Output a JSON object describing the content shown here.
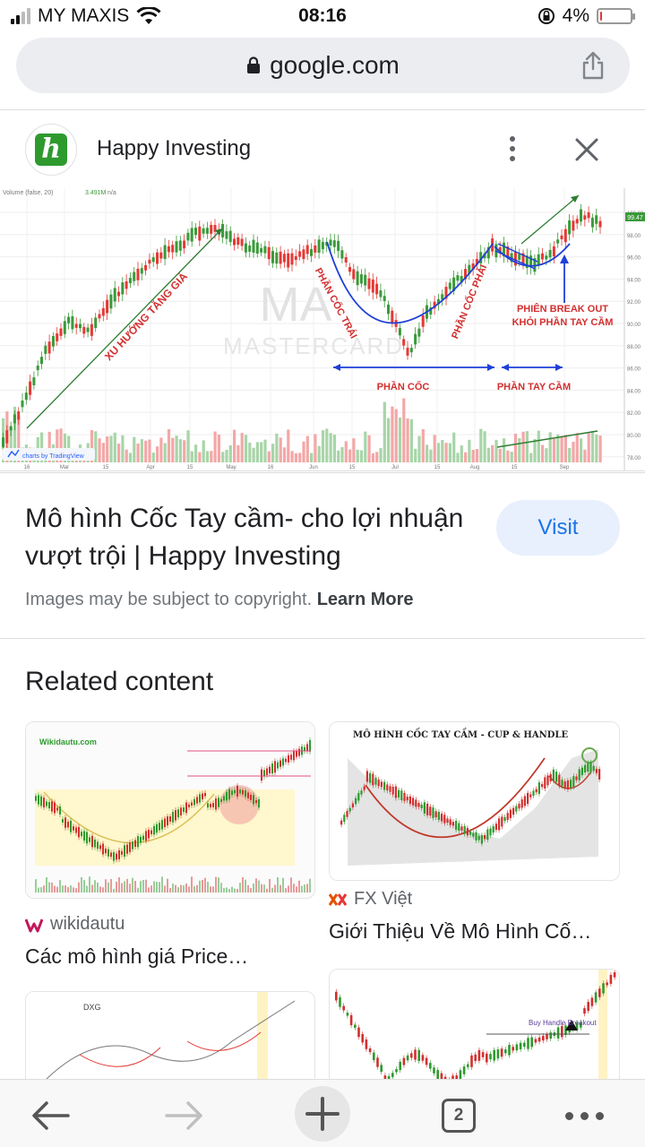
{
  "status_bar": {
    "carrier": "MY MAXIS",
    "time": "08:16",
    "battery": "4%",
    "battery_level": 0.04
  },
  "browser": {
    "url": "google.com"
  },
  "source": {
    "name": "Happy Investing",
    "logo_letter": "h",
    "logo_color": "#2e9a2e"
  },
  "main_image": {
    "volume_label": "Volume (false, 20)",
    "volume_value": "3.491M",
    "volume_na": "n/a",
    "attribution": "charts by TradingView",
    "watermark_top": "MA",
    "watermark_bottom": "MASTERCARD",
    "last_price": "99.47",
    "y_ticks": [
      "100.00",
      "98.00",
      "96.00",
      "94.00",
      "92.00",
      "90.00",
      "88.00",
      "86.00",
      "84.00",
      "82.00",
      "80.00",
      "78.00"
    ],
    "x_ticks": [
      "16",
      "Mar",
      "15",
      "Apr",
      "15",
      "May",
      "16",
      "Jun",
      "15",
      "Jul",
      "15",
      "Aug",
      "15",
      "Sep"
    ],
    "annotations": {
      "uptrend": "XU HƯỚNG TĂNG GIÁ",
      "cup_left": "PHẦN CỐC TRÁI",
      "cup_right": "PHẦN CỐC PHẢI",
      "cup": "PHẦN CỐC",
      "handle": "PHẦN TAY CẦM",
      "breakout_line1": "PHIÊN BREAK OUT",
      "breakout_line2": "KHỎI PHẦN TAY CẦM"
    }
  },
  "result": {
    "title": "Mô hình Cốc Tay cầm- cho lợi nhuận vượt trội | Happy Investing",
    "visit_label": "Visit",
    "copyright_text": "Images may be subject to copyright.",
    "learn_more": "Learn More"
  },
  "related": {
    "heading": "Related content",
    "cards": [
      {
        "source": "wikidautu",
        "title": "Các mô hình giá Price…",
        "thumb_brand": "Wikidautu.com"
      },
      {
        "source": "FX Việt",
        "title": "Giới Thiệu Về Mô Hình Cố…",
        "thumb_caption": "MÔ HÌNH CỐC TAY CẦM - CUP & HANDLE"
      },
      {
        "thumb_label": "DXG"
      },
      {
        "thumb_label": "Buy Handle Breakout"
      }
    ]
  },
  "toolbar": {
    "tab_count": "2"
  },
  "colors": {
    "accent": "#1a73e8",
    "visit_bg": "#e8f0fe",
    "up_candle": "#3a9a3a",
    "down_candle": "#e53935",
    "annotation_red": "#d32f2f",
    "annotation_blue": "#1e3fd8"
  }
}
